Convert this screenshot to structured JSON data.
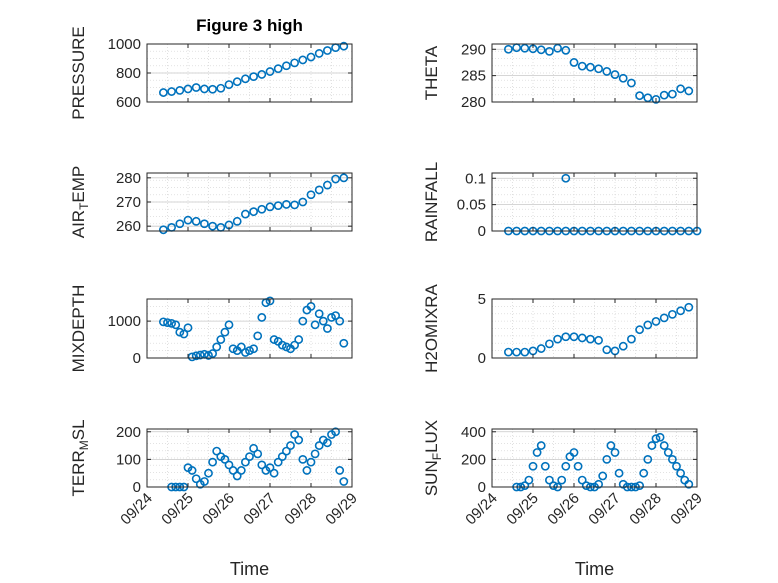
{
  "chart_data": [
    {
      "type": "scatter",
      "title": "Figure 3 high",
      "ylabel_parts": [
        [
          "PRESSURE",
          ""
        ]
      ],
      "ylim": [
        600,
        1000
      ],
      "yticks": [
        600,
        800,
        1000
      ],
      "xlim": [
        0,
        5
      ],
      "xtick_labels": [],
      "x": [
        0.4,
        0.6,
        0.8,
        1.0,
        1.2,
        1.4,
        1.6,
        1.8,
        2.0,
        2.2,
        2.4,
        2.6,
        2.8,
        3.0,
        3.2,
        3.4,
        3.6,
        3.8,
        4.0,
        4.2,
        4.4,
        4.6,
        4.8
      ],
      "y": [
        665,
        672,
        680,
        690,
        700,
        690,
        688,
        695,
        720,
        740,
        760,
        775,
        790,
        810,
        830,
        850,
        870,
        890,
        910,
        935,
        955,
        975,
        985
      ]
    },
    {
      "type": "scatter",
      "title": "",
      "ylabel_parts": [
        [
          "THETA",
          ""
        ]
      ],
      "ylim": [
        280,
        291
      ],
      "yticks": [
        280,
        285,
        290
      ],
      "xlim": [
        0,
        5
      ],
      "xtick_labels": [],
      "x": [
        0.4,
        0.6,
        0.8,
        1.0,
        1.2,
        1.4,
        1.6,
        1.8,
        2.0,
        2.2,
        2.4,
        2.6,
        2.8,
        3.0,
        3.2,
        3.4,
        3.6,
        3.8,
        4.0,
        4.2,
        4.4,
        4.6,
        4.8
      ],
      "y": [
        290,
        290.3,
        290.2,
        290.1,
        289.9,
        289.6,
        290.2,
        289.8,
        287.5,
        286.8,
        286.6,
        286.3,
        285.8,
        285.2,
        284.5,
        283.6,
        281.2,
        280.8,
        280.5,
        281.3,
        281.5,
        282.5,
        282.1
      ]
    },
    {
      "type": "scatter",
      "title": "",
      "ylabel_parts": [
        [
          "AIR",
          ""
        ],
        [
          "T",
          "sub"
        ],
        [
          "EMP",
          ""
        ]
      ],
      "ylim": [
        258,
        282
      ],
      "yticks": [
        260,
        270,
        280
      ],
      "xlim": [
        0,
        5
      ],
      "xtick_labels": [],
      "x": [
        0.4,
        0.6,
        0.8,
        1.0,
        1.2,
        1.4,
        1.6,
        1.8,
        2.0,
        2.2,
        2.4,
        2.6,
        2.8,
        3.0,
        3.2,
        3.4,
        3.6,
        3.8,
        4.0,
        4.2,
        4.4,
        4.6,
        4.8
      ],
      "y": [
        258.5,
        259.5,
        261,
        262.5,
        262,
        261,
        260,
        259.5,
        260.5,
        262,
        265,
        266,
        267,
        268,
        268.5,
        269,
        268.8,
        270,
        273,
        275,
        277,
        279.5,
        280
      ]
    },
    {
      "type": "scatter",
      "title": "",
      "ylabel_parts": [
        [
          "RAINFALL",
          ""
        ]
      ],
      "ylim": [
        0,
        0.11
      ],
      "yticks": [
        0,
        0.05,
        0.1
      ],
      "xlim": [
        0,
        5
      ],
      "xtick_labels": [],
      "x": [
        0.4,
        0.6,
        0.8,
        1.0,
        1.2,
        1.4,
        1.6,
        1.8,
        2.0,
        2.2,
        2.4,
        2.6,
        2.8,
        3.0,
        3.2,
        3.4,
        3.6,
        3.8,
        4.0,
        4.2,
        4.4,
        4.6,
        4.8,
        5.0,
        1.8
      ],
      "y": [
        0,
        0,
        0,
        0,
        0,
        0,
        0,
        0,
        0,
        0,
        0,
        0,
        0,
        0,
        0,
        0,
        0,
        0,
        0,
        0,
        0,
        0,
        0,
        0,
        0.1
      ]
    },
    {
      "type": "scatter",
      "title": "",
      "ylabel_parts": [
        [
          "MIXDEPTH",
          ""
        ]
      ],
      "ylim": [
        0,
        1600
      ],
      "yticks": [
        0,
        1000
      ],
      "xlim": [
        0,
        5
      ],
      "xtick_labels": [],
      "x": [
        0.4,
        0.5,
        0.6,
        0.7,
        0.8,
        0.9,
        1.0,
        1.1,
        1.2,
        1.3,
        1.4,
        1.5,
        1.6,
        1.7,
        1.8,
        1.9,
        2.0,
        2.1,
        2.2,
        2.3,
        2.4,
        2.5,
        2.6,
        2.7,
        2.8,
        2.9,
        3.0,
        3.1,
        3.2,
        3.3,
        3.4,
        3.5,
        3.6,
        3.7,
        3.8,
        3.9,
        4.0,
        4.1,
        4.2,
        4.3,
        4.4,
        4.5,
        4.6,
        4.7,
        4.8
      ],
      "y": [
        980,
        960,
        940,
        900,
        700,
        650,
        820,
        30,
        60,
        80,
        100,
        70,
        120,
        300,
        500,
        700,
        900,
        250,
        200,
        300,
        150,
        200,
        250,
        600,
        1100,
        1500,
        1550,
        500,
        450,
        350,
        300,
        250,
        350,
        500,
        1000,
        1300,
        1400,
        900,
        1200,
        1000,
        800,
        1100,
        1150,
        1000,
        400
      ]
    },
    {
      "type": "scatter",
      "title": "",
      "ylabel_parts": [
        [
          "H2OMIXRA",
          ""
        ]
      ],
      "ylim": [
        0,
        5
      ],
      "yticks": [
        0,
        5
      ],
      "xlim": [
        0,
        5
      ],
      "xtick_labels": [],
      "x": [
        0.4,
        0.6,
        0.8,
        1.0,
        1.2,
        1.4,
        1.6,
        1.8,
        2.0,
        2.2,
        2.4,
        2.6,
        2.8,
        3.0,
        3.2,
        3.4,
        3.6,
        3.8,
        4.0,
        4.2,
        4.4,
        4.6,
        4.8
      ],
      "y": [
        0.5,
        0.5,
        0.5,
        0.6,
        0.8,
        1.2,
        1.6,
        1.8,
        1.8,
        1.7,
        1.6,
        1.5,
        0.7,
        0.6,
        1.0,
        1.6,
        2.4,
        2.8,
        3.1,
        3.4,
        3.7,
        4.0,
        4.3
      ]
    },
    {
      "type": "scatter",
      "title": "",
      "ylabel_parts": [
        [
          "TERR",
          ""
        ],
        [
          "M",
          "sub"
        ],
        [
          "SL",
          ""
        ]
      ],
      "ylim": [
        0,
        210
      ],
      "yticks": [
        0,
        100,
        200
      ],
      "xlim": [
        0,
        5
      ],
      "xtick_labels": [
        "09/24",
        "09/25",
        "09/26",
        "09/27",
        "09/28",
        "09/29"
      ],
      "xlabel": "Time",
      "x": [
        0.6,
        0.7,
        0.8,
        0.9,
        1.0,
        1.1,
        1.2,
        1.3,
        1.4,
        1.5,
        1.6,
        1.7,
        1.8,
        1.9,
        2.0,
        2.1,
        2.2,
        2.3,
        2.4,
        2.5,
        2.6,
        2.7,
        2.8,
        2.9,
        3.0,
        3.1,
        3.2,
        3.3,
        3.4,
        3.5,
        3.6,
        3.7,
        3.8,
        3.9,
        4.0,
        4.1,
        4.2,
        4.3,
        4.4,
        4.5,
        4.6,
        4.7,
        4.8
      ],
      "y": [
        0,
        0,
        0,
        0,
        70,
        60,
        30,
        10,
        20,
        50,
        90,
        130,
        110,
        100,
        80,
        60,
        40,
        60,
        90,
        110,
        140,
        120,
        80,
        60,
        70,
        50,
        90,
        110,
        130,
        150,
        190,
        170,
        100,
        60,
        90,
        120,
        150,
        170,
        160,
        190,
        200,
        60,
        20
      ]
    },
    {
      "type": "scatter",
      "title": "",
      "ylabel_parts": [
        [
          "SUN",
          ""
        ],
        [
          "F",
          "sub"
        ],
        [
          "LUX",
          ""
        ]
      ],
      "ylim": [
        0,
        420
      ],
      "yticks": [
        0,
        200,
        400
      ],
      "xlim": [
        0,
        5
      ],
      "xtick_labels": [
        "09/24",
        "09/25",
        "09/26",
        "09/27",
        "09/28",
        "09/29"
      ],
      "xlabel": "Time",
      "x": [
        0.6,
        0.7,
        0.8,
        0.9,
        1.0,
        1.1,
        1.2,
        1.3,
        1.4,
        1.5,
        1.6,
        1.7,
        1.8,
        1.9,
        2.0,
        2.1,
        2.2,
        2.3,
        2.4,
        2.5,
        2.6,
        2.7,
        2.8,
        2.9,
        3.0,
        3.1,
        3.2,
        3.3,
        3.4,
        3.5,
        3.6,
        3.7,
        3.8,
        3.9,
        4.0,
        4.1,
        4.2,
        4.3,
        4.4,
        4.5,
        4.6,
        4.7,
        4.8
      ],
      "y": [
        0,
        0,
        10,
        50,
        150,
        250,
        300,
        150,
        50,
        10,
        0,
        50,
        150,
        220,
        250,
        150,
        50,
        10,
        0,
        0,
        20,
        80,
        200,
        300,
        250,
        100,
        20,
        0,
        0,
        0,
        10,
        100,
        200,
        300,
        350,
        360,
        300,
        250,
        200,
        150,
        100,
        50,
        20
      ]
    }
  ],
  "colors": {
    "marker": "#0072BD",
    "axis": "#262626",
    "grid": "#d9d9d9"
  }
}
